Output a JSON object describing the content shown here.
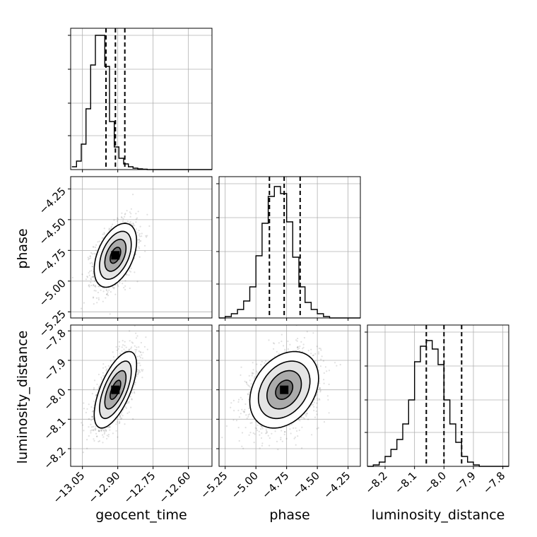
{
  "chart_data": {
    "type": "corner",
    "grid": true,
    "parameters": [
      {
        "name": "geocent_time",
        "label": "geocent_time",
        "range": [
          -13.1,
          -12.5
        ],
        "ticks": [
          -13.05,
          -12.9,
          -12.75,
          -12.6
        ],
        "tick_labels": [
          "−13.05",
          "−12.90",
          "−12.75",
          "−12.60"
        ],
        "median": -12.91,
        "quantiles": [
          -12.95,
          -12.87
        ],
        "histogram": {
          "bin_start": -13.095,
          "bin_width": 0.02,
          "counts": [
            0.02,
            0.06,
            0.18,
            0.43,
            0.74,
            0.95,
            0.95,
            0.73,
            0.34,
            0.16,
            0.08,
            0.04,
            0.02,
            0.01,
            0.005,
            0.003,
            0.0,
            0.0,
            0.0,
            0.0,
            0.0,
            0.0,
            0.0,
            0.0,
            0.0,
            0.0,
            0.0,
            0.0,
            0.0,
            0.0
          ]
        }
      },
      {
        "name": "phase",
        "label": "phase",
        "range": [
          -5.3,
          -4.15
        ],
        "ticks": [
          -5.25,
          -5.0,
          -4.75,
          -4.5,
          -4.25
        ],
        "tick_labels": [
          "−5.25",
          "−5.00",
          "−4.75",
          "−4.50",
          "−4.25"
        ],
        "median": -4.77,
        "quantiles": [
          -4.89,
          -4.64
        ],
        "histogram": {
          "bin_start": -5.3,
          "bin_width": 0.05,
          "counts": [
            0.0,
            0.01,
            0.03,
            0.06,
            0.12,
            0.22,
            0.44,
            0.67,
            0.86,
            0.93,
            0.88,
            0.68,
            0.43,
            0.22,
            0.11,
            0.06,
            0.03,
            0.01,
            0.0,
            0.0,
            0.0,
            0.0,
            0.0
          ]
        }
      },
      {
        "name": "luminosity_distance",
        "label": "luminosity_distance",
        "range": [
          -8.26,
          -7.78
        ],
        "ticks": [
          -8.2,
          -8.1,
          -8.0,
          -7.9,
          -7.8
        ],
        "tick_labels": [
          "−8.2",
          "−8.1",
          "−8.0",
          "−7.9",
          "−7.8"
        ],
        "median": -8.0,
        "quantiles": [
          -8.06,
          -7.94
        ],
        "histogram": {
          "bin_start": -8.26,
          "bin_width": 0.02,
          "counts": [
            0.0,
            0.01,
            0.03,
            0.07,
            0.12,
            0.19,
            0.3,
            0.47,
            0.74,
            0.85,
            0.89,
            0.83,
            0.72,
            0.47,
            0.3,
            0.17,
            0.07,
            0.03,
            0.01,
            0.0,
            0.0,
            0.0,
            0.0,
            0.0
          ]
        }
      }
    ],
    "pairs": [
      {
        "x": "geocent_time",
        "y": "phase",
        "center": [
          -12.91,
          -4.79
        ],
        "sigma": [
          0.045,
          0.13
        ],
        "correlation": 0.45,
        "levels_sigma": [
          0.5,
          1.0,
          1.5,
          2.0
        ]
      },
      {
        "x": "geocent_time",
        "y": "luminosity_distance",
        "center": [
          -12.91,
          -8.0
        ],
        "sigma": [
          0.045,
          0.065
        ],
        "correlation": 0.65,
        "levels_sigma": [
          0.5,
          1.0,
          1.5,
          2.0
        ]
      },
      {
        "x": "phase",
        "y": "luminosity_distance",
        "center": [
          -4.77,
          -8.0
        ],
        "sigma": [
          0.14,
          0.065
        ],
        "correlation": 0.3,
        "levels_sigma": [
          0.5,
          1.0,
          1.5,
          2.0
        ]
      }
    ]
  }
}
